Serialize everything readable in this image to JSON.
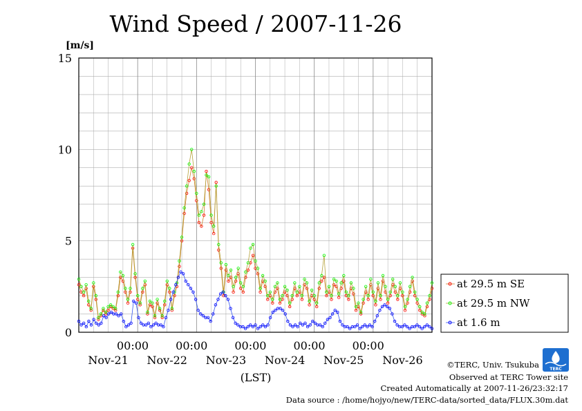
{
  "chart_data": {
    "type": "line",
    "title": "Wind Speed / 2007-11-26",
    "ylabel": "[m/s]",
    "xlabel": "(LST)",
    "ylim": [
      0,
      15
    ],
    "yticks": [
      "0",
      "5",
      "10",
      "15"
    ],
    "xlim_hours": [
      0,
      144
    ],
    "time_tick_label": "00:00",
    "day_labels": [
      "Nov-21",
      "Nov-22",
      "Nov-23",
      "Nov-24",
      "Nov-25",
      "Nov-26"
    ],
    "grid": true,
    "legend_position": "right",
    "series": [
      {
        "name": "at 29.5 m SE",
        "color": "#ff0000",
        "y": [
          2.6,
          2.2,
          2.0,
          2.4,
          1.5,
          1.2,
          2.5,
          1.8,
          0.7,
          0.9,
          1.2,
          1.0,
          1.2,
          1.4,
          1.3,
          1.2,
          2.0,
          3.0,
          2.8,
          2.2,
          1.6,
          2.2,
          4.6,
          3.0,
          1.8,
          1.5,
          2.2,
          2.6,
          1.0,
          1.5,
          1.4,
          0.8,
          1.6,
          1.2,
          0.8,
          1.5,
          2.6,
          2.2,
          1.2,
          2.0,
          2.5,
          3.6,
          5.0,
          6.5,
          7.6,
          8.3,
          9.0,
          8.4,
          7.2,
          6.0,
          5.8,
          6.4,
          8.8,
          7.8,
          6.0,
          5.4,
          8.2,
          4.5,
          3.5,
          2.0,
          3.4,
          2.8,
          3.0,
          2.2,
          2.8,
          3.2,
          2.4,
          2.2,
          3.0,
          3.4,
          3.8,
          4.2,
          3.5,
          3.2,
          2.2,
          2.8,
          2.5,
          1.8,
          2.0,
          1.6,
          2.2,
          2.4,
          1.6,
          1.8,
          2.2,
          2.0,
          1.4,
          1.8,
          2.4,
          2.0,
          2.2,
          1.8,
          2.6,
          2.4,
          1.5,
          2.0,
          1.8,
          1.4,
          2.4,
          2.8,
          3.0,
          2.0,
          2.2,
          1.8,
          2.6,
          2.5,
          1.9,
          2.4,
          2.8,
          2.0,
          1.8,
          2.4,
          2.1,
          1.2,
          1.4,
          1.0,
          1.6,
          2.2,
          1.8,
          2.6,
          2.0,
          1.5,
          2.4,
          1.8,
          2.8,
          2.2,
          1.6,
          2.0,
          2.6,
          2.2,
          1.8,
          2.4,
          2.0,
          1.2,
          1.6,
          2.2,
          2.8,
          2.0,
          1.6,
          1.2,
          1.0,
          0.9,
          1.4,
          1.8,
          2.4
        ],
        "values_note": ""
      },
      {
        "name": "at 29.5 m NW",
        "color": "#00ff00",
        "y": [
          2.9,
          2.5,
          2.2,
          2.6,
          1.7,
          1.3,
          2.7,
          2.0,
          0.8,
          1.0,
          1.3,
          1.1,
          1.4,
          1.5,
          1.4,
          1.3,
          2.2,
          3.3,
          3.1,
          2.4,
          1.8,
          2.4,
          4.8,
          3.2,
          2.0,
          1.6,
          2.4,
          2.8,
          1.1,
          1.7,
          1.6,
          0.9,
          1.8,
          1.3,
          0.9,
          1.7,
          2.8,
          2.4,
          1.3,
          2.2,
          2.7,
          3.9,
          5.2,
          6.8,
          8.0,
          9.2,
          10.0,
          8.8,
          7.6,
          6.4,
          6.6,
          7.0,
          8.6,
          8.5,
          6.4,
          5.8,
          8.0,
          4.8,
          3.8,
          2.2,
          3.7,
          3.1,
          3.4,
          2.5,
          3.0,
          3.5,
          2.7,
          2.5,
          3.3,
          3.8,
          4.6,
          4.8,
          3.9,
          3.5,
          2.4,
          3.1,
          2.8,
          2.0,
          2.2,
          1.8,
          2.5,
          2.7,
          1.8,
          2.0,
          2.5,
          2.3,
          1.6,
          2.0,
          2.7,
          2.2,
          2.5,
          2.0,
          2.9,
          2.7,
          1.7,
          2.3,
          2.0,
          1.6,
          2.7,
          3.1,
          4.2,
          2.2,
          2.5,
          2.0,
          2.9,
          2.8,
          2.1,
          2.7,
          3.1,
          2.2,
          2.0,
          2.7,
          2.4,
          1.4,
          1.6,
          1.1,
          1.8,
          2.5,
          2.0,
          2.9,
          2.2,
          1.7,
          2.7,
          2.0,
          3.1,
          2.5,
          1.8,
          2.2,
          2.9,
          2.5,
          2.0,
          2.7,
          2.2,
          1.4,
          1.8,
          2.5,
          3.0,
          2.2,
          1.8,
          1.4,
          1.1,
          1.0,
          1.6,
          2.0,
          2.7
        ],
        "values_note": ""
      },
      {
        "name": "at 1.6 m",
        "color": "#0000ff",
        "y": [
          0.6,
          0.4,
          0.5,
          0.3,
          0.6,
          0.4,
          0.7,
          0.5,
          0.4,
          0.5,
          0.9,
          0.8,
          1.0,
          1.1,
          1.0,
          1.0,
          0.9,
          1.0,
          0.6,
          0.3,
          0.4,
          0.5,
          1.7,
          1.6,
          0.8,
          0.5,
          0.4,
          0.4,
          0.5,
          0.3,
          0.4,
          0.5,
          0.4,
          0.4,
          0.3,
          0.8,
          1.2,
          1.8,
          2.2,
          2.6,
          3.0,
          3.3,
          3.2,
          2.8,
          2.6,
          2.4,
          2.2,
          1.8,
          1.2,
          1.0,
          0.9,
          0.8,
          0.8,
          0.6,
          1.0,
          1.5,
          1.8,
          2.1,
          2.2,
          2.0,
          1.8,
          1.3,
          0.8,
          0.5,
          0.4,
          0.3,
          0.3,
          0.2,
          0.3,
          0.4,
          0.3,
          0.4,
          0.2,
          0.3,
          0.4,
          0.3,
          0.4,
          0.8,
          1.1,
          1.2,
          1.3,
          1.3,
          1.2,
          1.0,
          0.6,
          0.4,
          0.3,
          0.4,
          0.3,
          0.5,
          0.4,
          0.5,
          0.3,
          0.4,
          0.6,
          0.5,
          0.4,
          0.4,
          0.3,
          0.5,
          0.7,
          0.8,
          1.0,
          1.2,
          1.1,
          0.6,
          0.4,
          0.3,
          0.3,
          0.2,
          0.3,
          0.3,
          0.4,
          0.2,
          0.3,
          0.4,
          0.3,
          0.4,
          0.3,
          0.6,
          0.9,
          1.2,
          1.4,
          1.5,
          1.4,
          1.3,
          1.0,
          0.6,
          0.4,
          0.3,
          0.3,
          0.4,
          0.3,
          0.2,
          0.3,
          0.3,
          0.4,
          0.3,
          0.2,
          0.3,
          0.4,
          0.3,
          0.2
        ],
        "values_note": ""
      }
    ]
  },
  "footer": {
    "copyright": "©TERC, Univ. Tsukuba",
    "observed": "Observed at TERC Tower site",
    "created": "Created Automatically at 2007-11-26/23:32:17",
    "source": "Data source : /home/hojyo/new/TERC-data/sorted_data/FLUX.30m.dat"
  },
  "logo": {
    "text": "TERC",
    "color": "#1e6fd0"
  }
}
